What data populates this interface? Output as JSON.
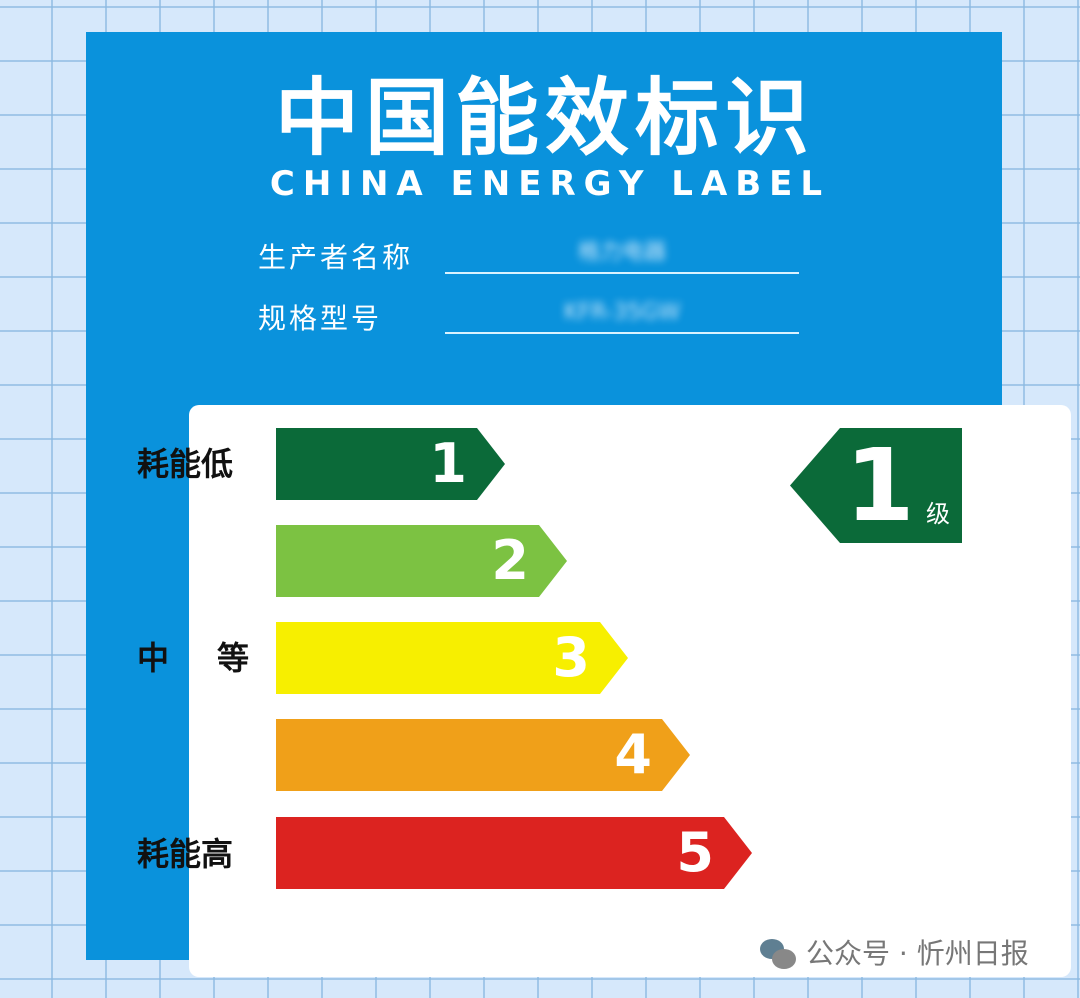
{
  "header": {
    "title_cn": "中国能效标识",
    "title_en": "CHINA ENERGY LABEL"
  },
  "fields": [
    {
      "label": "生产者名称",
      "value": "格力电器"
    },
    {
      "label": "规格型号",
      "value": "KFR-35GW"
    }
  ],
  "scale": {
    "labels": {
      "low": "耗能低",
      "mid": "中　等",
      "high": "耗能高"
    },
    "grades": [
      {
        "n": "1",
        "color": "#0b6a39"
      },
      {
        "n": "2",
        "color": "#7cc242"
      },
      {
        "n": "3",
        "color": "#f7ef00"
      },
      {
        "n": "4",
        "color": "#f0a019"
      },
      {
        "n": "5",
        "color": "#dc2320"
      }
    ]
  },
  "indicator": {
    "grade": "1",
    "unit": "级",
    "color": "#0b6a39"
  },
  "watermark": {
    "text": "公众号 · 忻州日报",
    "icon": "wechat-icon"
  }
}
